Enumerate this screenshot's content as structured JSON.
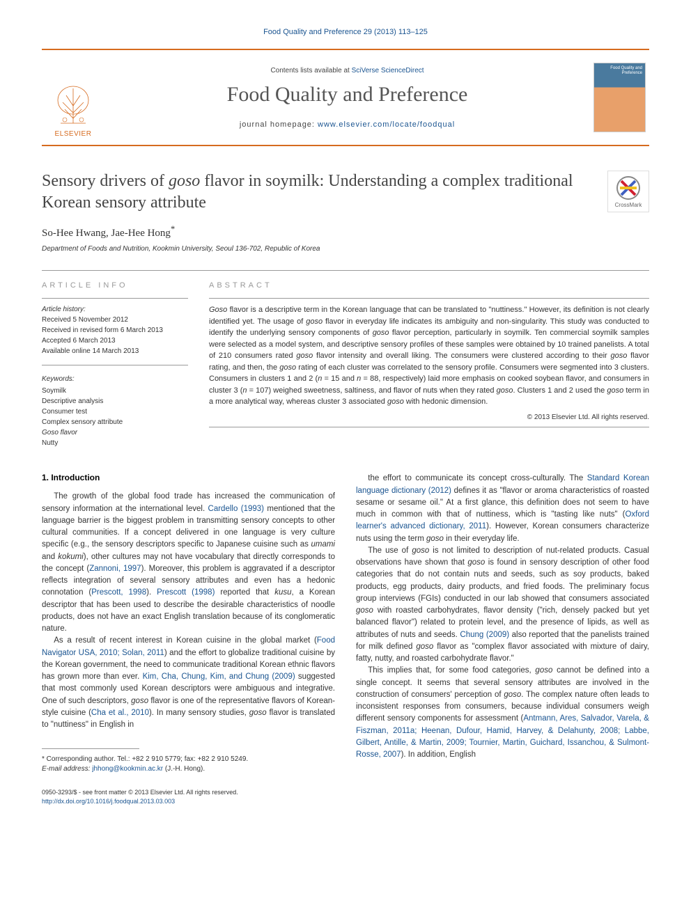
{
  "citation": "Food Quality and Preference 29 (2013) 113–125",
  "header": {
    "contents_prefix": "Contents lists available at ",
    "contents_link": "SciVerse ScienceDirect",
    "journal": "Food Quality and Preference",
    "homepage_prefix": "journal homepage: ",
    "homepage_url": "www.elsevier.com/locate/foodqual",
    "publisher": "ELSEVIER",
    "cover_title": "Food Quality and Preference"
  },
  "article": {
    "title_a": "Sensory drivers of ",
    "title_em": "goso",
    "title_b": " flavor in soymilk: Understanding a complex traditional Korean sensory attribute",
    "authors": "So-Hee Hwang, Jae-Hee Hong",
    "author_sup": "*",
    "affiliation": "Department of Foods and Nutrition, Kookmin University, Seoul 136-702, Republic of Korea",
    "crossmark": "CrossMark"
  },
  "info": {
    "article_info_label": "ARTICLE INFO",
    "abstract_label": "ABSTRACT",
    "history_label": "Article history:",
    "history": [
      "Received 5 November 2012",
      "Received in revised form 6 March 2013",
      "Accepted 6 March 2013",
      "Available online 14 March 2013"
    ],
    "keywords_label": "Keywords:",
    "keywords": [
      "Soymilk",
      "Descriptive analysis",
      "Consumer test",
      "Complex sensory attribute",
      "Goso flavor",
      "Nutty"
    ]
  },
  "abstract": {
    "text_parts": [
      {
        "t": "em",
        "v": "Goso"
      },
      {
        "t": "n",
        "v": " flavor is a descriptive term in the Korean language that can be translated to \"nuttiness.\" However, its definition is not clearly identified yet. The usage of "
      },
      {
        "t": "em",
        "v": "goso"
      },
      {
        "t": "n",
        "v": " flavor in everyday life indicates its ambiguity and non-singularity. This study was conducted to identify the underlying sensory components of "
      },
      {
        "t": "em",
        "v": "goso"
      },
      {
        "t": "n",
        "v": " flavor perception, particularly in soymilk. Ten commercial soymilk samples were selected as a model system, and descriptive sensory profiles of these samples were obtained by 10 trained panelists. A total of 210 consumers rated "
      },
      {
        "t": "em",
        "v": "goso"
      },
      {
        "t": "n",
        "v": " flavor intensity and overall liking. The consumers were clustered according to their "
      },
      {
        "t": "em",
        "v": "goso"
      },
      {
        "t": "n",
        "v": " flavor rating, and then, the "
      },
      {
        "t": "em",
        "v": "goso"
      },
      {
        "t": "n",
        "v": " rating of each cluster was correlated to the sensory profile. Consumers were segmented into 3 clusters. Consumers in clusters 1 and 2 ("
      },
      {
        "t": "em",
        "v": "n"
      },
      {
        "t": "n",
        "v": " = 15 and "
      },
      {
        "t": "em",
        "v": "n"
      },
      {
        "t": "n",
        "v": " = 88, respectively) laid more emphasis on cooked soybean flavor, and consumers in cluster 3 ("
      },
      {
        "t": "em",
        "v": "n"
      },
      {
        "t": "n",
        "v": " = 107) weighed sweetness, saltiness, and flavor of nuts when they rated "
      },
      {
        "t": "em",
        "v": "goso"
      },
      {
        "t": "n",
        "v": ". Clusters 1 and 2 used the "
      },
      {
        "t": "em",
        "v": "goso"
      },
      {
        "t": "n",
        "v": " term in a more analytical way, whereas cluster 3 associated "
      },
      {
        "t": "em",
        "v": "goso"
      },
      {
        "t": "n",
        "v": " with hedonic dimension."
      }
    ],
    "copyright": "© 2013 Elsevier Ltd. All rights reserved."
  },
  "body": {
    "heading": "1. Introduction",
    "col1": [
      [
        {
          "t": "n",
          "v": "The growth of the global food trade has increased the communication of sensory information at the international level. "
        },
        {
          "t": "ref",
          "v": "Cardello (1993)"
        },
        {
          "t": "n",
          "v": " mentioned that the language barrier is the biggest problem in transmitting sensory concepts to other cultural communities. If a concept delivered in one language is very culture specific (e.g., the sensory descriptors specific to Japanese cuisine such as "
        },
        {
          "t": "em",
          "v": "umami"
        },
        {
          "t": "n",
          "v": " and "
        },
        {
          "t": "em",
          "v": "kokumi"
        },
        {
          "t": "n",
          "v": "), other cultures may not have vocabulary that directly corresponds to the concept ("
        },
        {
          "t": "ref",
          "v": "Zannoni, 1997"
        },
        {
          "t": "n",
          "v": "). Moreover, this problem is aggravated if a descriptor reflects integration of several sensory attributes and even has a hedonic connotation ("
        },
        {
          "t": "ref",
          "v": "Prescott, 1998"
        },
        {
          "t": "n",
          "v": "). "
        },
        {
          "t": "ref",
          "v": "Prescott (1998)"
        },
        {
          "t": "n",
          "v": " reported that "
        },
        {
          "t": "em",
          "v": "kusu"
        },
        {
          "t": "n",
          "v": ", a Korean descriptor that has been used to describe the desirable characteristics of noodle products, does not have an exact English translation because of its conglomeratic nature."
        }
      ],
      [
        {
          "t": "n",
          "v": "As a result of recent interest in Korean cuisine in the global market ("
        },
        {
          "t": "ref",
          "v": "Food Navigator USA, 2010; Solan, 2011"
        },
        {
          "t": "n",
          "v": ") and the effort to globalize traditional cuisine by the Korean government, the need to communicate traditional Korean ethnic flavors has grown more than ever. "
        },
        {
          "t": "ref",
          "v": "Kim, Cha, Chung, Kim, and Chung (2009)"
        },
        {
          "t": "n",
          "v": " suggested that most commonly used Korean descriptors were ambiguous and integrative. One of such descriptors, "
        },
        {
          "t": "em",
          "v": "goso"
        },
        {
          "t": "n",
          "v": " flavor is one of the representative flavors of Korean-style cuisine ("
        },
        {
          "t": "ref",
          "v": "Cha et al., 2010"
        },
        {
          "t": "n",
          "v": "). In many sensory studies, "
        },
        {
          "t": "em",
          "v": "goso"
        },
        {
          "t": "n",
          "v": " flavor is translated to \"nuttiness\" in English in"
        }
      ]
    ],
    "col2": [
      [
        {
          "t": "n",
          "v": "the effort to communicate its concept cross-culturally. The "
        },
        {
          "t": "ref",
          "v": "Standard Korean language dictionary (2012)"
        },
        {
          "t": "n",
          "v": " defines it as \"flavor or aroma characteristics of roasted sesame or sesame oil.\" At a first glance, this definition does not seem to have much in common with that of nuttiness, which is \"tasting like nuts\" ("
        },
        {
          "t": "ref",
          "v": "Oxford learner's advanced dictionary, 2011"
        },
        {
          "t": "n",
          "v": "). However, Korean consumers characterize nuts using the term "
        },
        {
          "t": "em",
          "v": "goso"
        },
        {
          "t": "n",
          "v": " in their everyday life."
        }
      ],
      [
        {
          "t": "n",
          "v": "The use of "
        },
        {
          "t": "em",
          "v": "goso"
        },
        {
          "t": "n",
          "v": " is not limited to description of nut-related products. Casual observations have shown that "
        },
        {
          "t": "em",
          "v": "goso"
        },
        {
          "t": "n",
          "v": " is found in sensory description of other food categories that do not contain nuts and seeds, such as soy products, baked products, egg products, dairy products, and fried foods. The preliminary focus group interviews (FGIs) conducted in our lab showed that consumers associated "
        },
        {
          "t": "em",
          "v": "goso"
        },
        {
          "t": "n",
          "v": " with roasted carbohydrates, flavor density (\"rich, densely packed but yet balanced flavor\") related to protein level, and the presence of lipids, as well as attributes of nuts and seeds. "
        },
        {
          "t": "ref",
          "v": "Chung (2009)"
        },
        {
          "t": "n",
          "v": " also reported that the panelists trained for milk defined "
        },
        {
          "t": "em",
          "v": "goso"
        },
        {
          "t": "n",
          "v": " flavor as \"complex flavor associated with mixture of dairy, fatty, nutty, and roasted carbohydrate flavor.\""
        }
      ],
      [
        {
          "t": "n",
          "v": "This implies that, for some food categories, "
        },
        {
          "t": "em",
          "v": "goso"
        },
        {
          "t": "n",
          "v": " cannot be defined into a single concept. It seems that several sensory attributes are involved in the construction of consumers' perception of "
        },
        {
          "t": "em",
          "v": "goso"
        },
        {
          "t": "n",
          "v": ". The complex nature often leads to inconsistent responses from consumers, because individual consumers weigh different sensory components for assessment ("
        },
        {
          "t": "ref",
          "v": "Antmann, Ares, Salvador, Varela, & Fiszman, 2011a; Heenan, Dufour, Hamid, Harvey, & Delahunty, 2008; Labbe, Gilbert, Antille, & Martin, 2009; Tournier, Martin, Guichard, Issanchou, & Sulmont-Rosse, 2007"
        },
        {
          "t": "n",
          "v": "). In addition, English"
        }
      ]
    ]
  },
  "footnote": {
    "corr": "* Corresponding author. Tel.: +82 2 910 5779; fax: +82 2 910 5249.",
    "email_label": "E-mail address:",
    "email": " jhhong@kookmin.ac.kr",
    "email_suffix": " (J.-H. Hong)."
  },
  "footer": {
    "line1": "0950-3293/$ - see front matter © 2013 Elsevier Ltd. All rights reserved.",
    "doi": "http://dx.doi.org/10.1016/j.foodqual.2013.03.003"
  },
  "colors": {
    "accent": "#d66a1e",
    "link": "#1a5490",
    "text": "#333333"
  }
}
